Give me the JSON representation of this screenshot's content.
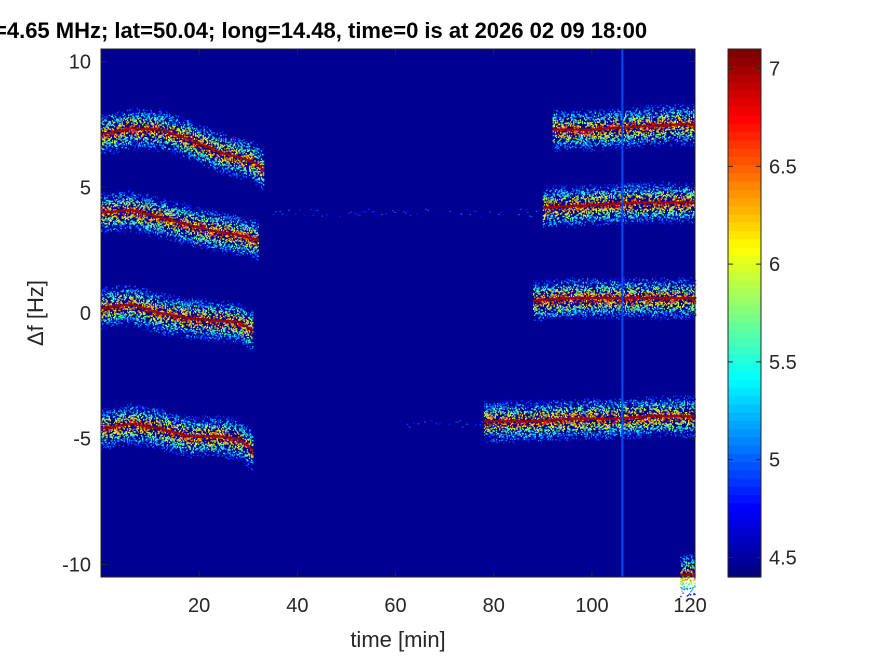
{
  "chart_data": {
    "type": "heatmap",
    "title": "=4.65 MHz;  lat=50.04; long=14.48, time=0 is at 2026 02 09 18:00",
    "xlabel": "time [min]",
    "ylabel": "Δf [Hz]",
    "xlim": [
      0,
      121
    ],
    "ylim": [
      -10.5,
      10.5
    ],
    "xticks": [
      20,
      40,
      60,
      80,
      100,
      120
    ],
    "yticks": [
      10,
      5,
      0,
      -5,
      -10
    ],
    "colorbar": {
      "colormap": "jet",
      "range": [
        4.4,
        7.1
      ],
      "ticks": [
        4.5,
        5,
        5.5,
        6,
        6.5,
        7
      ]
    },
    "background_value": 4.45,
    "traces": [
      {
        "points": [
          [
            0,
            7.1
          ],
          [
            6,
            7.35
          ],
          [
            12,
            7.3
          ],
          [
            18,
            6.9
          ],
          [
            24,
            6.4
          ],
          [
            28,
            6.2
          ],
          [
            31,
            6.0
          ],
          [
            33,
            5.7
          ]
        ]
      },
      {
        "points": [
          [
            0,
            4.0
          ],
          [
            6,
            4.1
          ],
          [
            10,
            3.9
          ],
          [
            16,
            3.6
          ],
          [
            22,
            3.3
          ],
          [
            28,
            3.1
          ],
          [
            32,
            2.9
          ]
        ]
      },
      {
        "points": [
          [
            0,
            0.2
          ],
          [
            6,
            0.35
          ],
          [
            12,
            0.0
          ],
          [
            18,
            -0.2
          ],
          [
            24,
            -0.3
          ],
          [
            28,
            -0.35
          ],
          [
            31,
            -0.7
          ]
        ]
      },
      {
        "points": [
          [
            0,
            -4.6
          ],
          [
            6,
            -4.4
          ],
          [
            12,
            -4.6
          ],
          [
            18,
            -4.9
          ],
          [
            24,
            -4.9
          ],
          [
            28,
            -5.0
          ],
          [
            31,
            -5.5
          ]
        ]
      },
      {
        "points": [
          [
            92,
            7.3
          ],
          [
            100,
            7.3
          ],
          [
            108,
            7.4
          ],
          [
            116,
            7.5
          ],
          [
            121,
            7.5
          ]
        ]
      },
      {
        "points": [
          [
            90,
            4.2
          ],
          [
            100,
            4.3
          ],
          [
            110,
            4.4
          ],
          [
            121,
            4.4
          ]
        ]
      },
      {
        "points": [
          [
            88,
            0.5
          ],
          [
            96,
            0.6
          ],
          [
            104,
            0.6
          ],
          [
            112,
            0.6
          ],
          [
            121,
            0.6
          ]
        ]
      },
      {
        "points": [
          [
            78,
            -4.3
          ],
          [
            88,
            -4.3
          ],
          [
            96,
            -4.2
          ],
          [
            104,
            -4.2
          ],
          [
            112,
            -4.1
          ],
          [
            121,
            -4.1
          ]
        ]
      },
      {
        "points": [
          [
            118,
            -10.4
          ],
          [
            121,
            -10.4
          ]
        ]
      }
    ],
    "vertical_line_at_min": 106
  }
}
